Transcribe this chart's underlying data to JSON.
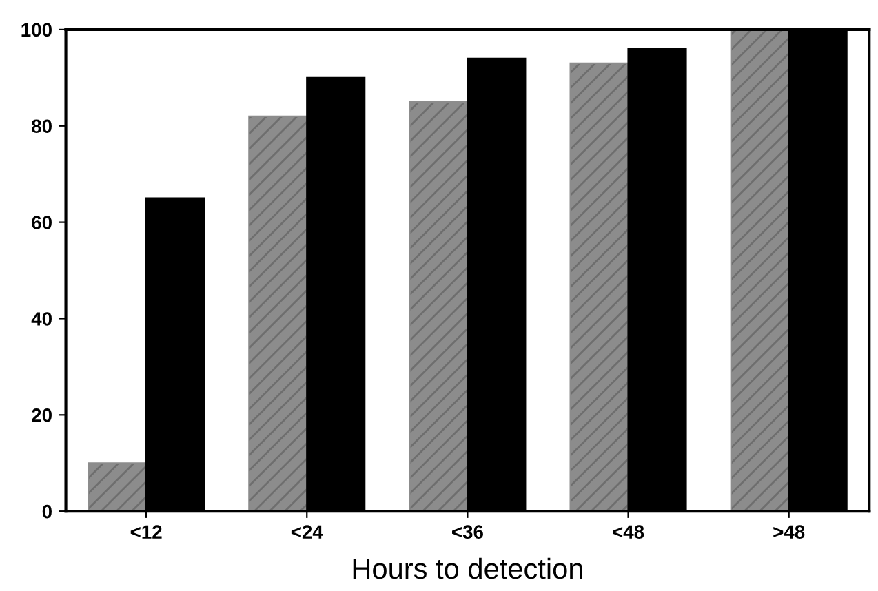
{
  "chart_data": {
    "type": "bar",
    "xlabel": "Hours to detection",
    "categories": [
      "<12",
      "<24",
      "<36",
      "<48",
      ">48"
    ],
    "series": [
      {
        "color": "#8c8c8c",
        "values": [
          10,
          82,
          85,
          93,
          100
        ]
      },
      {
        "color": "#000000",
        "values": [
          65,
          90,
          94,
          96,
          100
        ]
      }
    ],
    "ylim": [
      0,
      100
    ],
    "yticks": [
      0,
      20,
      40,
      60,
      80,
      100
    ],
    "grid": false
  }
}
